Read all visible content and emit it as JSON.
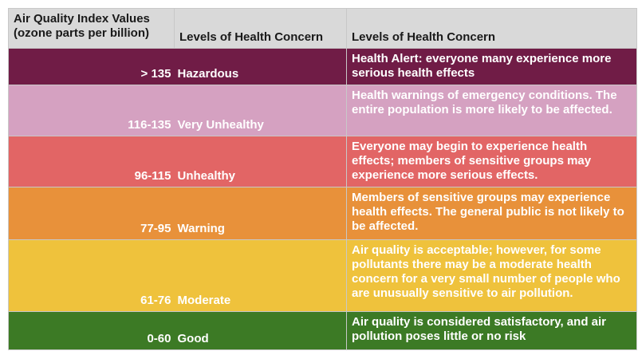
{
  "table": {
    "headers": [
      "Air Quality Index Values\n(ozone parts per billion)",
      "Levels of Health Concern",
      "Levels of Health Concern"
    ],
    "rows": [
      {
        "aqi": "> 135",
        "level": "Hazardous",
        "description": "Health Alert: everyone many experience more serious health effects",
        "color": "#701c46"
      },
      {
        "aqi": "116-135",
        "level": "Very Unhealthy",
        "description": "Health warnings of emergency conditions. The entire population is more likely to be affected.",
        "color": "#d5a1c1"
      },
      {
        "aqi": "96-115",
        "level": "Unhealthy",
        "description": "Everyone may begin to experience health effects; members of sensitive groups may experience more serious effects.",
        "color": "#e26565"
      },
      {
        "aqi": "77-95",
        "level": "Warning",
        "description": "Members of sensitive groups may experience health effects. The general public is not likely to be affected.",
        "color": "#e8913a"
      },
      {
        "aqi": "61-76",
        "level": "Moderate",
        "description": "Air quality is acceptable; however, for some pollutants there may be a moderate health concern for a very small number of people who are unusually sensitive to air pollution.",
        "color": "#efc23c"
      },
      {
        "aqi": "0-60",
        "level": "Good",
        "description": "Air quality is considered satisfactory, and air pollution poses little or no risk",
        "color": "#3c7a25"
      }
    ]
  }
}
